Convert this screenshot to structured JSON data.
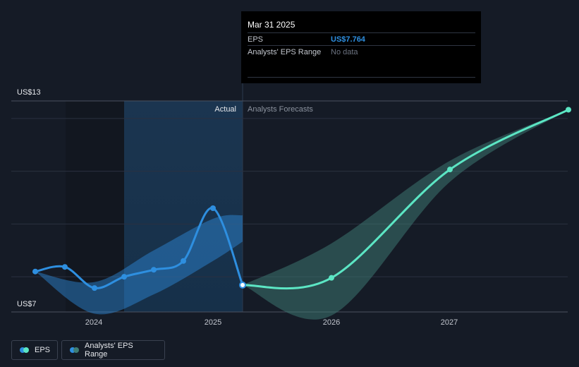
{
  "chart_data": {
    "type": "line",
    "title": "",
    "xlabel": "",
    "ylabel": "",
    "y_tick_labels": [
      "US$13",
      "US$7"
    ],
    "ylim": [
      7,
      13
    ],
    "x_tick_labels": [
      "2024",
      "2025",
      "2026",
      "2027"
    ],
    "x_tick_values": [
      2024.0,
      2025.0,
      2026.0,
      2027.0
    ],
    "xlim": [
      2023.35,
      2028.0
    ],
    "grid": true,
    "region_labels": {
      "actual": "Actual",
      "forecast": "Analysts Forecasts"
    },
    "actual_end_x": 2025.25,
    "series": [
      {
        "name": "EPS",
        "color": "#2e8fe0",
        "points": [
          {
            "x": 2023.5,
            "y": 8.15
          },
          {
            "x": 2023.75,
            "y": 8.28
          },
          {
            "x": 2024.0,
            "y": 7.68
          },
          {
            "x": 2024.25,
            "y": 8.0
          },
          {
            "x": 2024.5,
            "y": 8.2
          },
          {
            "x": 2024.75,
            "y": 8.45
          },
          {
            "x": 2025.0,
            "y": 9.95
          },
          {
            "x": 2025.25,
            "y": 7.764
          }
        ]
      },
      {
        "name": "EPS forecast",
        "color": "#5ce6c4",
        "points": [
          {
            "x": 2025.25,
            "y": 7.764
          },
          {
            "x": 2026.0,
            "y": 7.97
          },
          {
            "x": 2027.0,
            "y": 11.05
          },
          {
            "x": 2028.0,
            "y": 12.75
          }
        ]
      }
    ],
    "ranges": [
      {
        "name": "Analysts' EPS Range (historical)",
        "color": "#2e8fe0",
        "upper": [
          [
            2023.5,
            8.15
          ],
          [
            2024.0,
            7.85
          ],
          [
            2024.5,
            8.75
          ],
          [
            2025.0,
            9.65
          ],
          [
            2025.25,
            9.75
          ]
        ],
        "lower": [
          [
            2023.5,
            8.15
          ],
          [
            2024.0,
            6.95
          ],
          [
            2024.5,
            7.5
          ],
          [
            2025.0,
            8.45
          ],
          [
            2025.25,
            9.0
          ]
        ]
      },
      {
        "name": "Analysts' EPS Range (forecast)",
        "color": "#3f7d75",
        "upper": [
          [
            2025.25,
            7.764
          ],
          [
            2026.0,
            8.95
          ],
          [
            2027.0,
            11.3
          ],
          [
            2028.0,
            12.75
          ]
        ],
        "lower": [
          [
            2025.25,
            7.764
          ],
          [
            2026.0,
            6.9
          ],
          [
            2027.0,
            10.7
          ],
          [
            2028.0,
            12.75
          ]
        ]
      }
    ]
  },
  "tooltip": {
    "date": "Mar 31 2025",
    "eps_label": "EPS",
    "eps_value": "US$7.764",
    "range_label": "Analysts' EPS Range",
    "range_value": "No data"
  },
  "legend": {
    "eps_label": "EPS",
    "range_label": "Analysts' EPS Range",
    "eps_colors": [
      "#2e8fe0",
      "#5ce6c4"
    ],
    "range_colors": [
      "#2e8fe0",
      "#3f7d75"
    ]
  }
}
